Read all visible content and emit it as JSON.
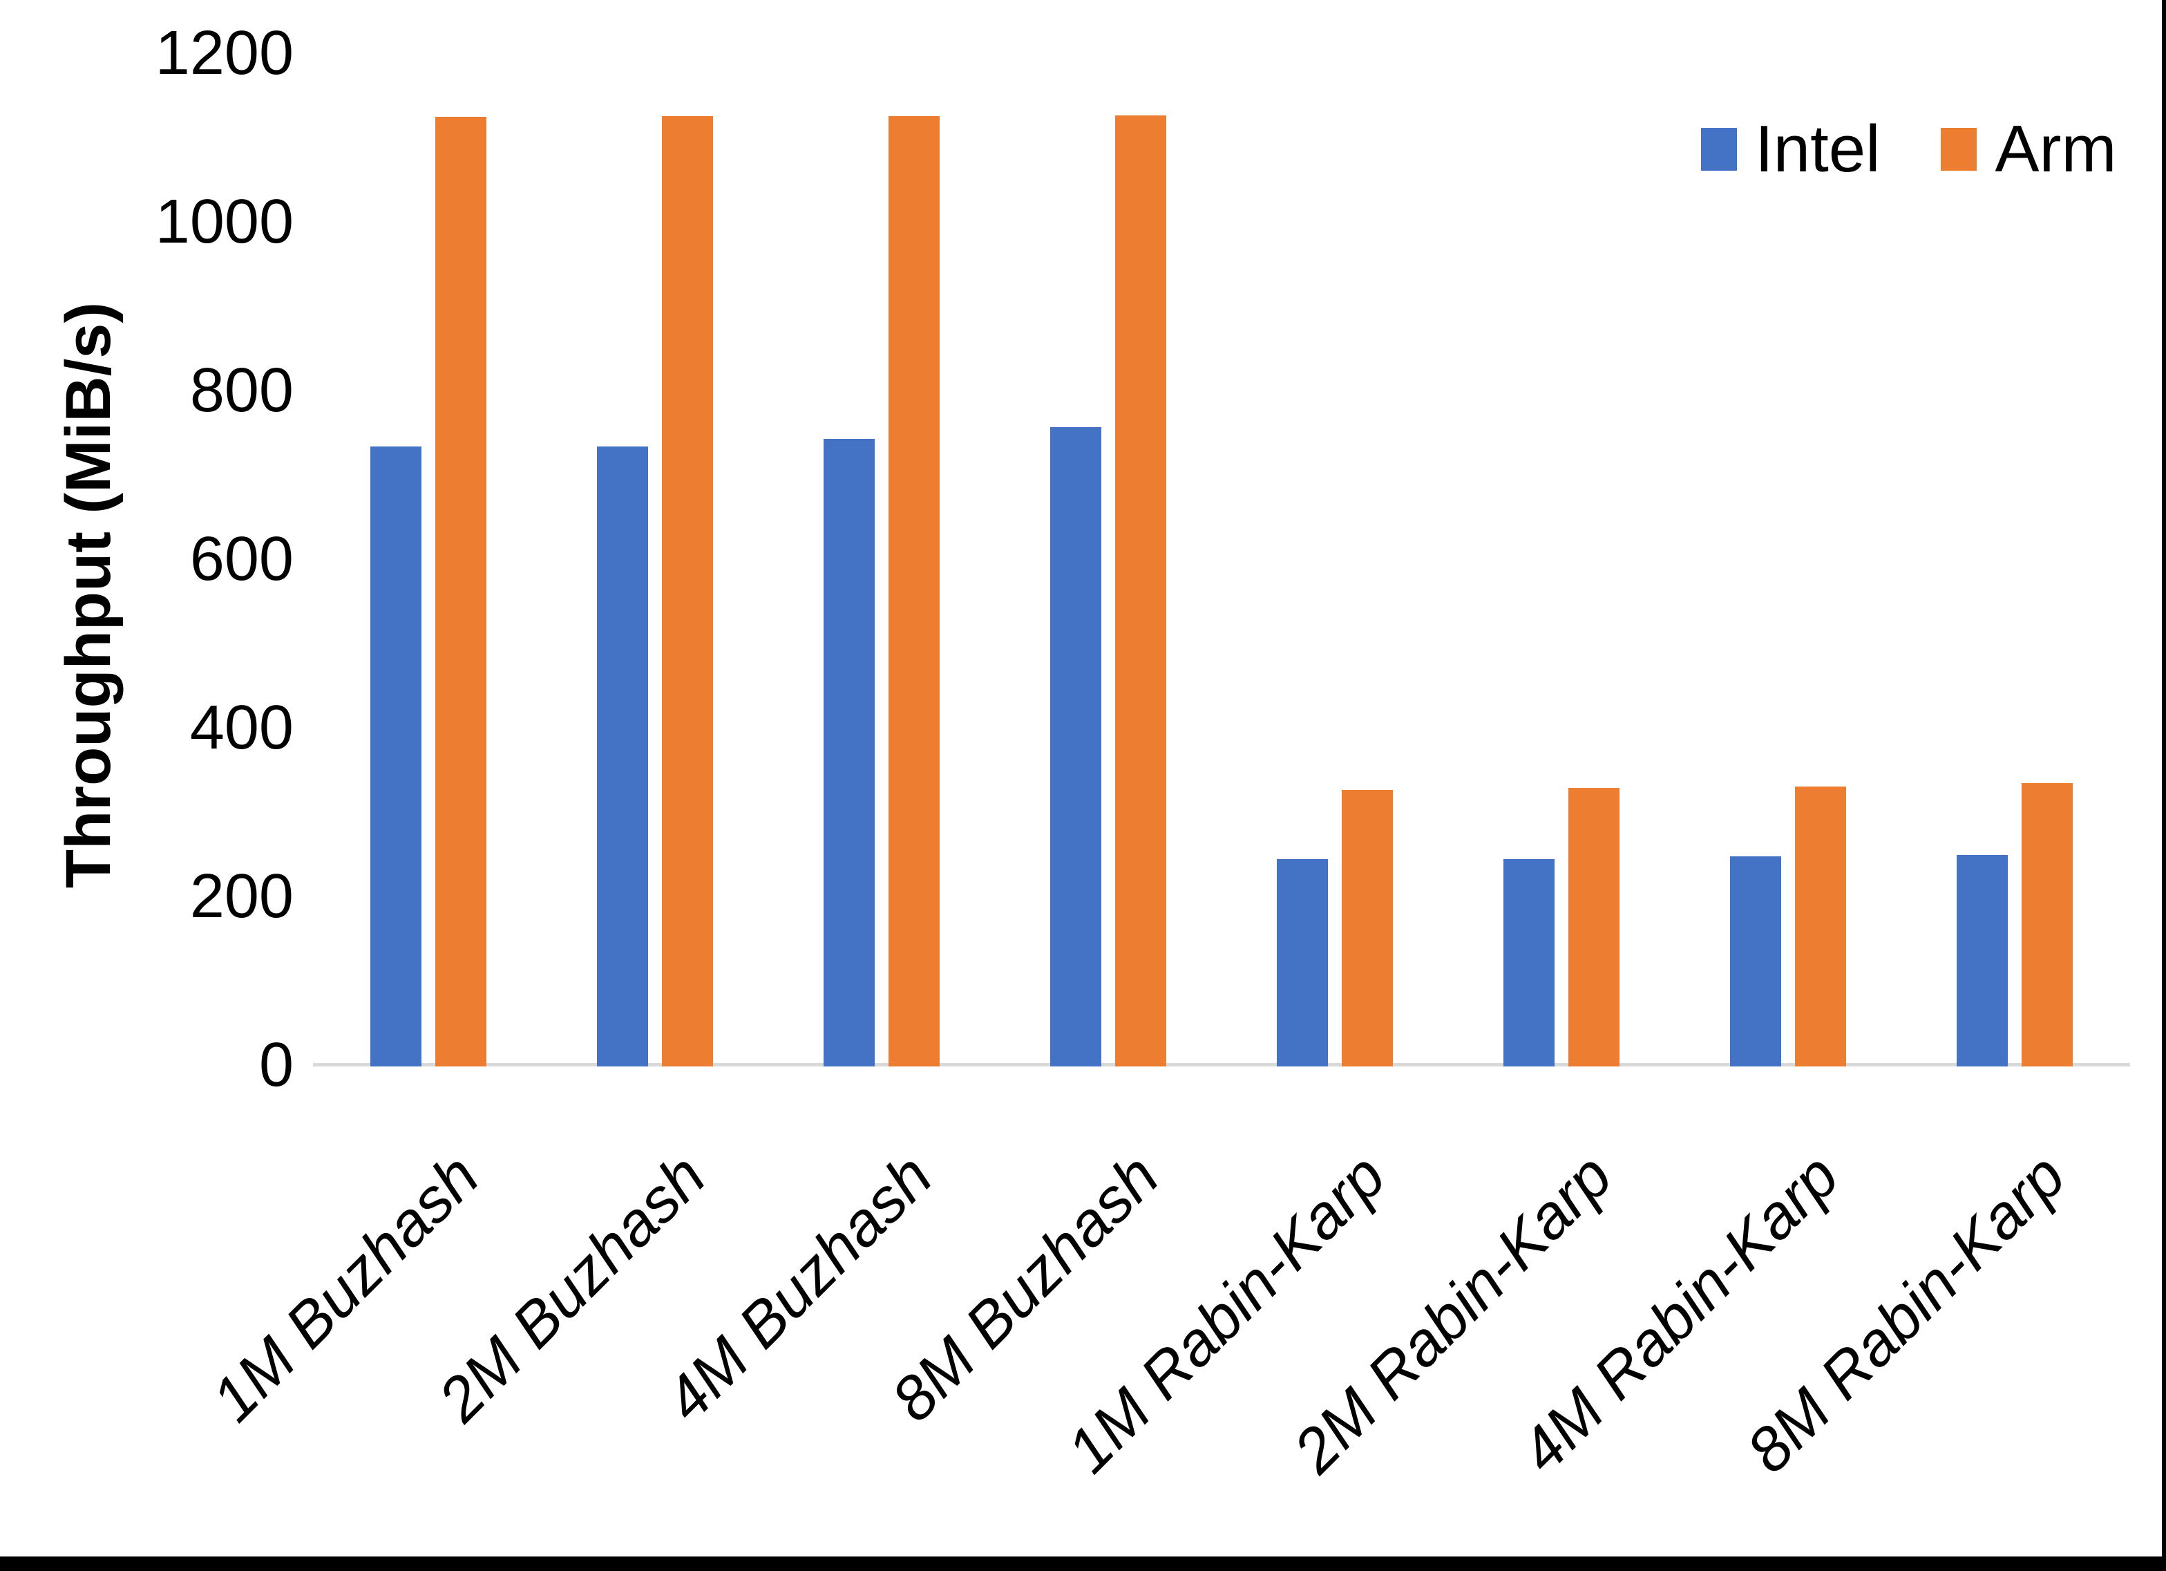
{
  "chart_data": {
    "type": "bar",
    "title": "",
    "xlabel": "",
    "ylabel": "Throughput (MiB/s)",
    "ylim": [
      0,
      1200
    ],
    "yticks": [
      1200,
      1000,
      800,
      600,
      400,
      200,
      0
    ],
    "grid": false,
    "legend_position": "top-right",
    "categories": [
      "1M Buzhash",
      "2M Buzhash",
      "4M Buzhash",
      "8M Buzhash",
      "1M Rabin-Karp",
      "2M Rabin-Karp",
      "4M Rabin-Karp",
      "8M Rabin-Karp"
    ],
    "series": [
      {
        "name": "Intel",
        "color": "#4472C4",
        "values": [
          735,
          735,
          744,
          758,
          246,
          246,
          249,
          251
        ]
      },
      {
        "name": "Arm",
        "color": "#ED7D31",
        "values": [
          1126,
          1127,
          1127,
          1128,
          328,
          330,
          332,
          336
        ]
      }
    ],
    "axis_line_color": "#d9d9d9"
  },
  "page": {
    "edge_color": "#000000"
  }
}
